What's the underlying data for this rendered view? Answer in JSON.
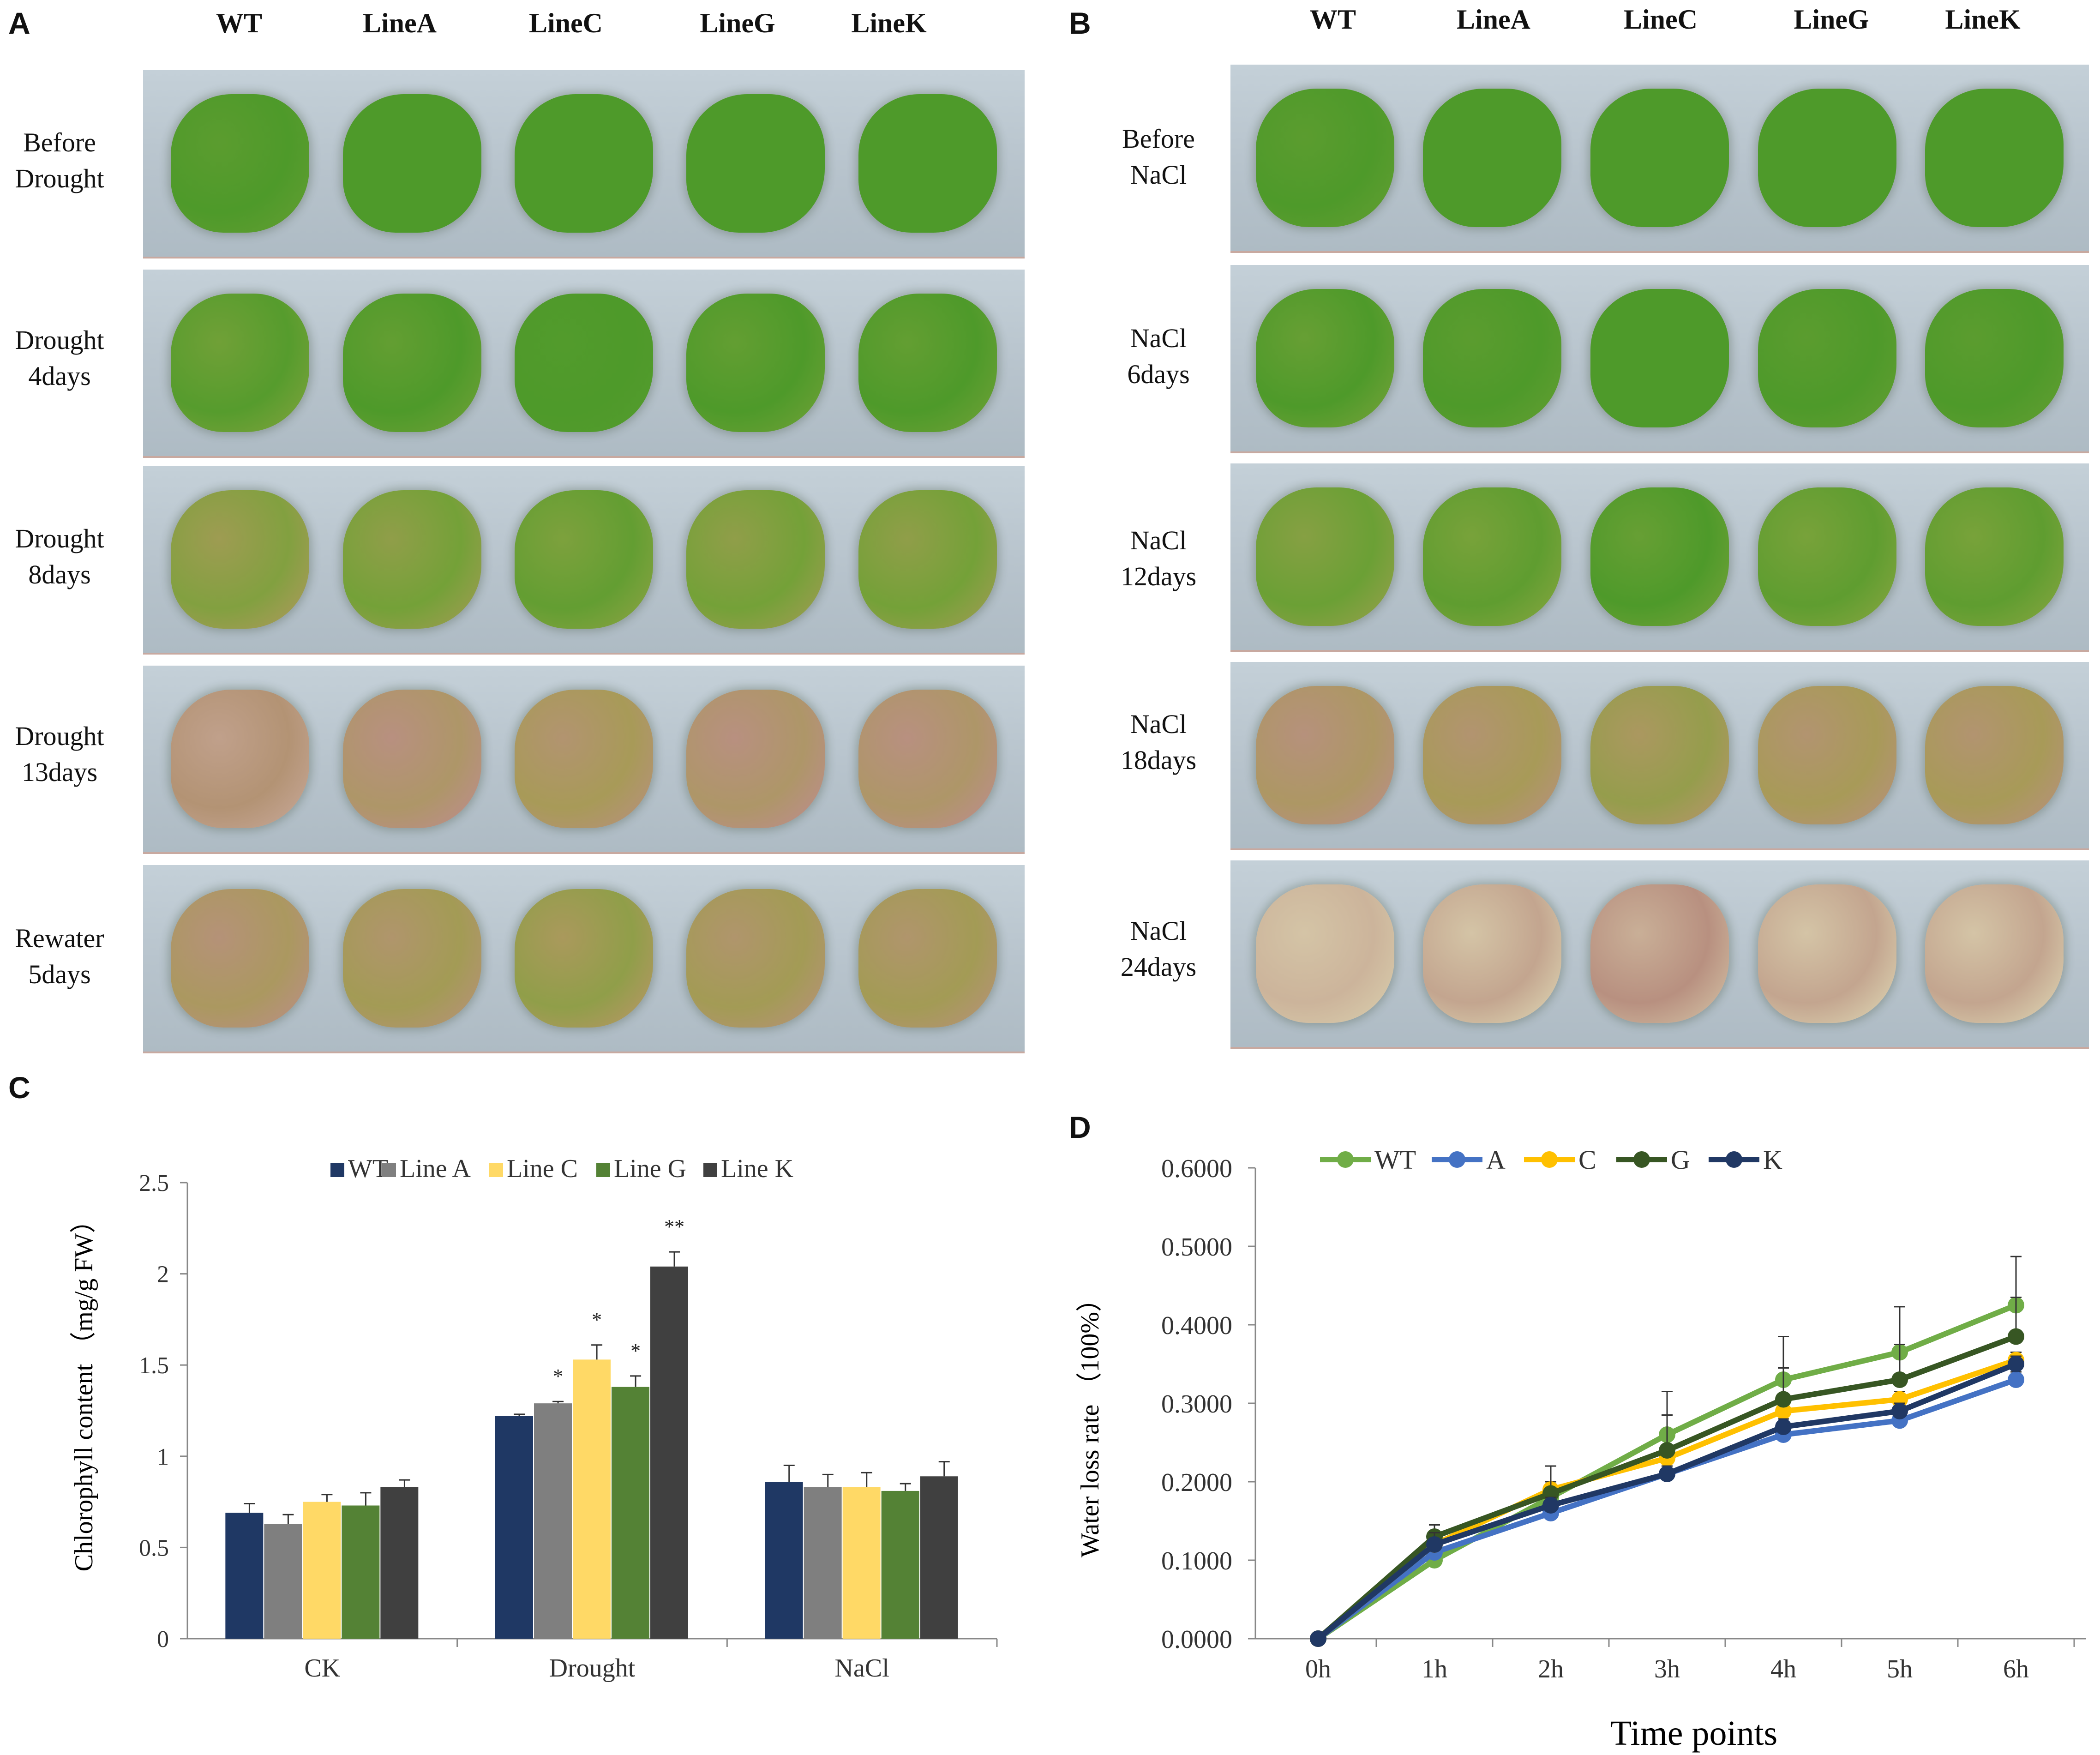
{
  "panels": {
    "A": "A",
    "B": "B",
    "C": "C",
    "D": "D"
  },
  "photo_grids": [
    {
      "id": "A",
      "columns": [
        "WT",
        "LineA",
        "LineC",
        "LineG",
        "LineK"
      ],
      "rows": [
        {
          "label": "Before\nDrought",
          "stage": 0
        },
        {
          "label": "Drought\n4days",
          "stage": 0.5
        },
        {
          "label": "Drought\n8days",
          "stage": 1.5
        },
        {
          "label": "Drought\n13days",
          "stage": 3
        },
        {
          "label": "Rewater\n5days",
          "stage": 2.5
        }
      ]
    },
    {
      "id": "B",
      "columns": [
        "WT",
        "LineA",
        "LineC",
        "LineG",
        "LineK"
      ],
      "rows": [
        {
          "label": "Before\nNaCl",
          "stage": 0
        },
        {
          "label": "NaCl\n6days",
          "stage": 0.3
        },
        {
          "label": "NaCl\n12days",
          "stage": 1
        },
        {
          "label": "NaCl\n18days",
          "stage": 2.6
        },
        {
          "label": "NaCl\n24days",
          "stage": 4
        }
      ]
    }
  ],
  "chart_data": [
    {
      "id": "C",
      "type": "bar",
      "categories": [
        "CK",
        "Drought",
        "NaCl"
      ],
      "series": [
        {
          "name": "WT",
          "color": "#1f3864",
          "values": [
            0.69,
            1.22,
            0.86
          ],
          "errors": [
            0.05,
            0.01,
            0.09
          ],
          "sig": [
            "",
            "",
            ""
          ]
        },
        {
          "name": "Line A",
          "color": "#7f7f7f",
          "values": [
            0.63,
            1.29,
            0.83
          ],
          "errors": [
            0.05,
            0.01,
            0.07
          ],
          "sig": [
            "",
            "*",
            ""
          ]
        },
        {
          "name": "Line C",
          "color": "#ffd966",
          "values": [
            0.75,
            1.53,
            0.83
          ],
          "errors": [
            0.04,
            0.08,
            0.08
          ],
          "sig": [
            "",
            "*",
            ""
          ]
        },
        {
          "name": "Line G",
          "color": "#548235",
          "values": [
            0.73,
            1.38,
            0.81
          ],
          "errors": [
            0.07,
            0.06,
            0.04
          ],
          "sig": [
            "",
            "*",
            ""
          ]
        },
        {
          "name": "Line K",
          "color": "#404040",
          "values": [
            0.83,
            2.04,
            0.89
          ],
          "errors": [
            0.04,
            0.08,
            0.08
          ],
          "sig": [
            "",
            "**",
            ""
          ]
        }
      ],
      "ylabel": "Chlorophyll content （mg/g FW）",
      "ylim": [
        0,
        2.5
      ],
      "yticks": [
        "0",
        "0.5",
        "1",
        "1.5",
        "2",
        "2.5"
      ],
      "ytick_values": [
        0,
        0.5,
        1,
        1.5,
        2,
        2.5
      ],
      "legend_position": "top"
    },
    {
      "id": "D",
      "type": "line",
      "x": [
        "0h",
        "1h",
        "2h",
        "3h",
        "4h",
        "5h",
        "6h"
      ],
      "series": [
        {
          "name": "WT",
          "color": "#70ad47",
          "values": [
            0,
            0.1,
            0.18,
            0.26,
            0.33,
            0.365,
            0.425
          ],
          "errors": [
            0,
            0.015,
            0.01,
            0.055,
            0.055,
            0.058,
            0.062
          ]
        },
        {
          "name": "A",
          "color": "#4472c4",
          "values": [
            0,
            0.11,
            0.16,
            0.21,
            0.26,
            0.278,
            0.33
          ],
          "errors": [
            0,
            0.015,
            0.01,
            0.01,
            0.01,
            0.01,
            0.01
          ]
        },
        {
          "name": "C",
          "color": "#ffc000",
          "values": [
            0,
            0.12,
            0.19,
            0.23,
            0.29,
            0.305,
            0.355
          ],
          "errors": [
            0,
            0.015,
            0.01,
            0.01,
            0.01,
            0.01,
            0.01
          ]
        },
        {
          "name": "G",
          "color": "#375623",
          "values": [
            0,
            0.13,
            0.185,
            0.24,
            0.305,
            0.33,
            0.385
          ],
          "errors": [
            0,
            0.015,
            0.035,
            0.045,
            0.04,
            0.045,
            0.05
          ]
        },
        {
          "name": "K",
          "color": "#203864",
          "values": [
            0,
            0.12,
            0.17,
            0.21,
            0.27,
            0.29,
            0.35
          ],
          "errors": [
            0,
            0.015,
            0.01,
            0.01,
            0.01,
            0.01,
            0.01
          ]
        }
      ],
      "xlabel": "Time points",
      "ylabel": "Water loss rate （100%）",
      "ylim": [
        0,
        0.6
      ],
      "yticks": [
        "0.0000",
        "0.1000",
        "0.2000",
        "0.3000",
        "0.4000",
        "0.5000",
        "0.6000"
      ],
      "ytick_values": [
        0,
        0.1,
        0.2,
        0.3,
        0.4,
        0.5,
        0.6
      ],
      "legend_position": "top"
    }
  ]
}
